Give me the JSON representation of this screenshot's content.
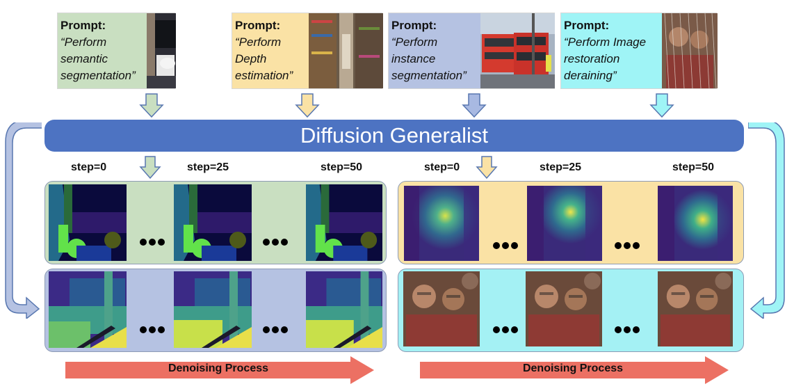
{
  "prompts": [
    {
      "head": "Prompt:",
      "body": "“Perform semantic segmentation”",
      "color": "#c9dfc1"
    },
    {
      "head": "Prompt:",
      "body": "“Perform Depth estimation”",
      "color": "#fae2a5"
    },
    {
      "head": "Prompt:",
      "body": "“Perform instance segmentation”",
      "color": "#b5c2e2"
    },
    {
      "head": "Prompt:",
      "body": "“Perform Image restoration deraining”",
      "color": "#9ff4f6"
    }
  ],
  "banner": {
    "title": "Diffusion Generalist",
    "color": "#4d73c2"
  },
  "steps": {
    "left": [
      "step=0",
      "step=25",
      "step=50"
    ],
    "right": [
      "step=0",
      "step=25",
      "step=50"
    ]
  },
  "rows": {
    "semantic_color": "#c9dfc1",
    "depth_color": "#fae2a5",
    "instance_color": "#b5c2e2",
    "derain_color": "#a4f1f4"
  },
  "process": {
    "left_label": "Denoising Process",
    "right_label": "Denoising Process",
    "arrow_color": "#ec7063"
  }
}
